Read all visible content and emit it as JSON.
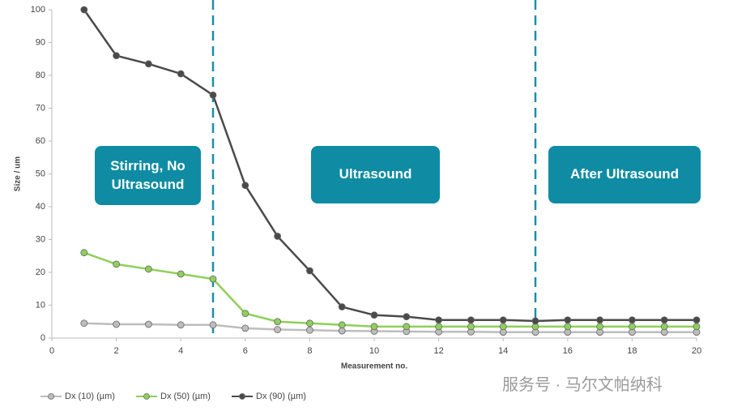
{
  "chart_data": {
    "type": "line",
    "x": [
      1,
      2,
      3,
      4,
      5,
      6,
      7,
      8,
      9,
      10,
      11,
      12,
      13,
      14,
      15,
      16,
      17,
      18,
      19,
      20
    ],
    "series": [
      {
        "name": "Dx (10) (µm)",
        "color": "#bdbdbd",
        "values": [
          4.5,
          4.2,
          4.2,
          4,
          4,
          3,
          2.6,
          2.4,
          2.2,
          2.1,
          2,
          1.9,
          1.9,
          1.8,
          1.8,
          1.8,
          1.8,
          1.8,
          1.8,
          1.8
        ]
      },
      {
        "name": "Dx (50) (µm)",
        "color": "#8fcf5a",
        "values": [
          26,
          22.5,
          21,
          19.5,
          18,
          7.5,
          5,
          4.5,
          4,
          3.5,
          3.5,
          3.5,
          3.5,
          3.5,
          3.5,
          3.5,
          3.5,
          3.5,
          3.5,
          3.5
        ]
      },
      {
        "name": "Dx (90) (µm)",
        "color": "#4a4a4a",
        "values": [
          100,
          86,
          83.5,
          80.5,
          74,
          46.5,
          31,
          20.5,
          9.5,
          7,
          6.5,
          5.5,
          5.5,
          5.5,
          5.2,
          5.5,
          5.5,
          5.5,
          5.5,
          5.5
        ]
      }
    ],
    "xlim": [
      0,
      20
    ],
    "xticks": [
      0,
      2,
      4,
      6,
      8,
      10,
      12,
      14,
      16,
      18,
      20
    ],
    "ylim": [
      0,
      100
    ],
    "yticks": [
      0,
      10,
      20,
      30,
      40,
      50,
      60,
      70,
      80,
      90,
      100
    ],
    "xlabel": "Measurement no.",
    "ylabel": "Size / um",
    "vlines": [
      5,
      15
    ],
    "vline_color": "#1a8fa8",
    "annotations": [
      "Stirring, No Ultrasound",
      "Ultrasound",
      "After Ultrasound"
    ],
    "annotation_color": "#0f8ca3",
    "legend": "bottom-left",
    "watermark": "服务号 · 马尔文帕纳科"
  }
}
